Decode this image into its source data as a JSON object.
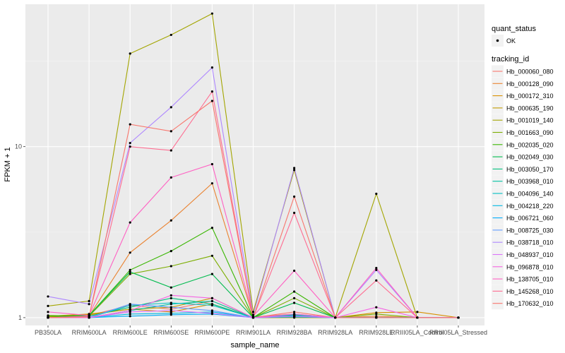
{
  "chart_data": {
    "type": "line",
    "xlabel": "sample_name",
    "ylabel": "FPKM + 1",
    "yscale": "log10",
    "ylim": [
      0.9,
      68
    ],
    "y_ticks": [
      1,
      10
    ],
    "grid": true,
    "legend_placement": "right",
    "categories": [
      "PB350LA",
      "RRIM600LA",
      "RRIM600LE",
      "RRIM600SE",
      "RRIM600PE",
      "RRIM901LA",
      "RRIM928BA",
      "RRIM928LA",
      "RRIM928LE",
      "RRIII05LA_Control",
      "RRIII05LA_Stressed"
    ],
    "quant_status": {
      "title": "quant_status",
      "items": [
        "OK"
      ]
    },
    "series": [
      {
        "name": "Hb_000060_080",
        "color": "#F8766D",
        "values": [
          1.0,
          1.03,
          1.18,
          1.12,
          1.25,
          1.0,
          1.08,
          1.0,
          1.0,
          1.0,
          1.0
        ]
      },
      {
        "name": "Hb_000128_090",
        "color": "#EA8331",
        "values": [
          1.01,
          1.02,
          2.4,
          3.7,
          6.1,
          1.01,
          1.05,
          1.0,
          1.02,
          1.0,
          1.0
        ]
      },
      {
        "name": "Hb_000172_310",
        "color": "#D89000",
        "values": [
          1.02,
          1.05,
          1.12,
          1.08,
          1.2,
          1.0,
          1.02,
          1.0,
          1.07,
          1.08,
          1.0
        ]
      },
      {
        "name": "Hb_000635_190",
        "color": "#C09B00",
        "values": [
          1.01,
          1.04,
          1.12,
          1.15,
          1.3,
          1.0,
          1.0,
          1.0,
          1.0,
          1.0,
          1.0
        ]
      },
      {
        "name": "Hb_001019_140",
        "color": "#A3A500",
        "values": [
          1.17,
          1.25,
          35,
          45,
          60,
          1.08,
          7.3,
          1.0,
          5.3,
          1.0,
          1.0
        ]
      },
      {
        "name": "Hb_001663_090",
        "color": "#7CAE00",
        "values": [
          1.03,
          1.02,
          1.8,
          2.0,
          2.3,
          1.0,
          1.3,
          1.0,
          1.05,
          1.0,
          1.0
        ]
      },
      {
        "name": "Hb_002035_020",
        "color": "#39B600",
        "values": [
          1.02,
          1.03,
          1.9,
          2.45,
          3.35,
          1.0,
          1.42,
          1.0,
          1.0,
          1.0,
          1.0
        ]
      },
      {
        "name": "Hb_002049_030",
        "color": "#00BB4E",
        "values": [
          1.0,
          1.03,
          1.85,
          1.5,
          1.8,
          1.0,
          1.22,
          1.0,
          1.0,
          1.0,
          1.0
        ]
      },
      {
        "name": "Hb_003050_170",
        "color": "#00BF7D",
        "values": [
          1.0,
          1.02,
          1.15,
          1.3,
          1.2,
          1.0,
          1.04,
          1.0,
          1.0,
          1.0,
          1.0
        ]
      },
      {
        "name": "Hb_003968_010",
        "color": "#00C1A3",
        "values": [
          1.0,
          1.0,
          1.1,
          1.2,
          1.25,
          1.0,
          1.03,
          1.0,
          1.0,
          1.0,
          1.0
        ]
      },
      {
        "name": "Hb_004096_140",
        "color": "#00BFC4",
        "values": [
          1.0,
          1.0,
          1.18,
          1.22,
          1.18,
          1.0,
          1.03,
          1.0,
          1.0,
          1.0,
          1.0
        ]
      },
      {
        "name": "Hb_004218_220",
        "color": "#00B9E3",
        "values": [
          1.0,
          1.0,
          1.05,
          1.06,
          1.08,
          1.0,
          1.01,
          1.0,
          1.0,
          1.0,
          1.0
        ]
      },
      {
        "name": "Hb_006721_060",
        "color": "#00ADFA",
        "values": [
          1.0,
          1.0,
          1.02,
          1.04,
          1.05,
          1.0,
          1.02,
          1.0,
          1.0,
          1.0,
          1.0
        ]
      },
      {
        "name": "Hb_008725_030",
        "color": "#619CFF",
        "values": [
          1.0,
          1.0,
          1.2,
          1.15,
          1.1,
          1.0,
          1.02,
          1.0,
          1.0,
          1.0,
          1.0
        ]
      },
      {
        "name": "Hb_038718_010",
        "color": "#AE87FF",
        "values": [
          1.33,
          1.2,
          10.5,
          17,
          29,
          1.04,
          7.5,
          1.0,
          1.9,
          1.0,
          1.0
        ]
      },
      {
        "name": "Hb_048937_010",
        "color": "#DB72FB",
        "values": [
          1.0,
          1.0,
          1.08,
          1.1,
          1.06,
          1.0,
          1.02,
          1.0,
          1.0,
          1.0,
          1.0
        ]
      },
      {
        "name": "Hb_096878_010",
        "color": "#F564E3",
        "values": [
          1.0,
          1.0,
          1.1,
          1.35,
          1.3,
          1.0,
          1.05,
          1.0,
          1.15,
          1.0,
          1.0
        ]
      },
      {
        "name": "Hb_138705_010",
        "color": "#FF61C3",
        "values": [
          1.08,
          1.03,
          3.6,
          6.6,
          7.9,
          1.02,
          1.88,
          1.0,
          1.95,
          1.0,
          1.0
        ]
      },
      {
        "name": "Hb_145268_010",
        "color": "#FF6C91",
        "values": [
          1.0,
          1.02,
          10.0,
          9.5,
          21,
          1.0,
          4.1,
          1.0,
          1.65,
          1.0,
          1.0
        ]
      },
      {
        "name": "Hb_170632_010",
        "color": "#F8766D",
        "values": [
          1.0,
          1.01,
          13.5,
          12.3,
          18.5,
          1.0,
          5.1,
          1.0,
          1.0,
          1.0,
          1.0
        ]
      }
    ]
  }
}
